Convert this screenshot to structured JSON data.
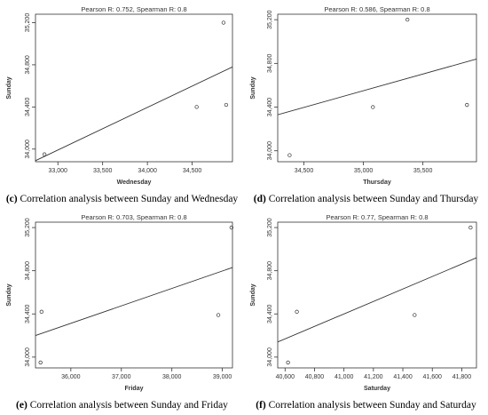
{
  "chart_data": [
    {
      "type": "scatter",
      "title": "Pearson R: 0.752, Spearman R: 0.8",
      "xlabel": "Wednesday",
      "ylabel": "Sunday",
      "caption_tag": "(c)",
      "caption_text": " Correlation analysis between Sunday and Wednesday",
      "xlim": [
        32750,
        34950
      ],
      "ylim": [
        33880,
        35280
      ],
      "xticks": [
        33000,
        33500,
        34000,
        34500
      ],
      "xtick_labels": [
        "33,000",
        "33,500",
        "34,000",
        "34,500"
      ],
      "yticks": [
        34000,
        34400,
        34800,
        35200
      ],
      "ytick_labels": [
        "34,000",
        "34,400",
        "34,800",
        "35,200"
      ],
      "points": [
        {
          "x": 32850,
          "y": 33950
        },
        {
          "x": 34550,
          "y": 34400
        },
        {
          "x": 34850,
          "y": 35200
        },
        {
          "x": 34880,
          "y": 34420
        }
      ],
      "fit_line": {
        "x": [
          32750,
          34950
        ],
        "y": [
          33890,
          34780
        ]
      },
      "grid": false
    },
    {
      "type": "scatter",
      "title": "Pearson R: 0.586, Spearman R: 0.8",
      "xlabel": "Thursday",
      "ylabel": "Sunday",
      "caption_tag": "(d)",
      "caption_text": " Correlation analysis between Sunday and Thursday",
      "xlim": [
        34280,
        35950
      ],
      "ylim": [
        33900,
        35250
      ],
      "xticks": [
        34500,
        35000,
        35500
      ],
      "xtick_labels": [
        "34,500",
        "35,000",
        "35,500"
      ],
      "yticks": [
        34000,
        34400,
        34800,
        35200
      ],
      "ytick_labels": [
        "34,000",
        "34,400",
        "34,800",
        "35,200"
      ],
      "points": [
        {
          "x": 34380,
          "y": 33960
        },
        {
          "x": 35080,
          "y": 34400
        },
        {
          "x": 35370,
          "y": 35200
        },
        {
          "x": 35870,
          "y": 34420
        }
      ],
      "fit_line": {
        "x": [
          34280,
          35950
        ],
        "y": [
          34330,
          34840
        ]
      },
      "grid": false
    },
    {
      "type": "scatter",
      "title": "Pearson R: 0.703, Spearman R: 0.8",
      "xlabel": "Friday",
      "ylabel": "Sunday",
      "caption_tag": "(e)",
      "caption_text": " Correlation analysis between Sunday and Friday",
      "xlim": [
        35300,
        39200
      ],
      "ylim": [
        33900,
        35250
      ],
      "xticks": [
        36000,
        37000,
        38000,
        39000
      ],
      "xtick_labels": [
        "36,000",
        "37,000",
        "38,000",
        "39,000"
      ],
      "yticks": [
        34000,
        34400,
        34800,
        35200
      ],
      "ytick_labels": [
        "34,000",
        "34,400",
        "34,800",
        "35,200"
      ],
      "points": [
        {
          "x": 35400,
          "y": 33950
        },
        {
          "x": 35420,
          "y": 34420
        },
        {
          "x": 38920,
          "y": 34390
        },
        {
          "x": 39180,
          "y": 35200
        }
      ],
      "fit_line": {
        "x": [
          35300,
          39200
        ],
        "y": [
          34200,
          34830
        ]
      },
      "grid": false
    },
    {
      "type": "scatter",
      "title": "Pearson R: 0.77, Spearman R: 0.8",
      "xlabel": "Saturday",
      "ylabel": "Sunday",
      "caption_tag": "(f)",
      "caption_text": " Correlation analysis between Sunday and Saturday",
      "xlim": [
        40550,
        41900
      ],
      "ylim": [
        33900,
        35250
      ],
      "xticks": [
        40600,
        40800,
        41000,
        41200,
        41400,
        41600,
        41800
      ],
      "xtick_labels": [
        "40,600",
        "40,800",
        "41,000",
        "41,200",
        "41,400",
        "41,600",
        "41,800"
      ],
      "yticks": [
        34000,
        34400,
        34800,
        35200
      ],
      "ytick_labels": [
        "34,000",
        "34,400",
        "34,800",
        "35,200"
      ],
      "points": [
        {
          "x": 40620,
          "y": 33950
        },
        {
          "x": 40680,
          "y": 34420
        },
        {
          "x": 41480,
          "y": 34390
        },
        {
          "x": 41860,
          "y": 35200
        }
      ],
      "fit_line": {
        "x": [
          40550,
          41900
        ],
        "y": [
          34140,
          34920
        ]
      },
      "grid": false
    }
  ],
  "colors": {
    "axis": "#333333",
    "points": "#333333",
    "line": "#333333",
    "text": "#000000"
  }
}
